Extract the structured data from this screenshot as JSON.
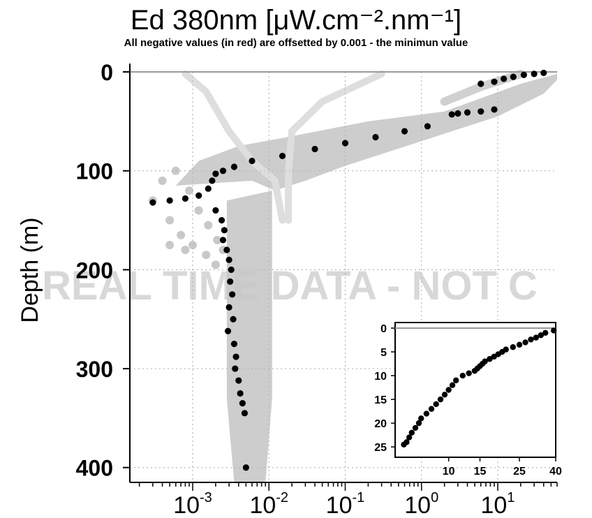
{
  "chart_data": {
    "type": "scatter",
    "title": "Ed 380nm [μW.cm⁻².nm⁻¹]",
    "subtitle": "All negative values (in red) are offsetted by 0.001 - the minimun value",
    "ylabel": "Depth (m)",
    "xlabel": "",
    "x_scale": "log",
    "y_inverted": true,
    "xlim": [
      0.00015,
      60
    ],
    "ylim": [
      0,
      415
    ],
    "x_ticks": [
      {
        "value": 0.001,
        "base": "10",
        "exp": "-3"
      },
      {
        "value": 0.01,
        "base": "10",
        "exp": "-2"
      },
      {
        "value": 0.1,
        "base": "10",
        "exp": "-1"
      },
      {
        "value": 1,
        "base": "10",
        "exp": "0"
      },
      {
        "value": 10,
        "base": "10",
        "exp": "1"
      }
    ],
    "y_ticks": [
      "0",
      "100",
      "200",
      "300",
      "400"
    ],
    "grid": true,
    "watermark": "REAL TIME DATA - NOT C",
    "colors": {
      "historical": "#c8c8c8",
      "current": "#000000",
      "surface_line": "#999999",
      "grid": "#b5b5b5"
    },
    "current_profile": [
      [
        40,
        1
      ],
      [
        30,
        2
      ],
      [
        22,
        3
      ],
      [
        16,
        5
      ],
      [
        12,
        7
      ],
      [
        9,
        10
      ],
      [
        6,
        12
      ],
      [
        9,
        38
      ],
      [
        6,
        40
      ],
      [
        4,
        41
      ],
      [
        3,
        42
      ],
      [
        2.5,
        43
      ],
      [
        1.2,
        55
      ],
      [
        0.6,
        60
      ],
      [
        0.25,
        66
      ],
      [
        0.1,
        72
      ],
      [
        0.04,
        78
      ],
      [
        0.015,
        85
      ],
      [
        0.006,
        90
      ],
      [
        0.0035,
        96
      ],
      [
        0.0025,
        100
      ],
      [
        0.002,
        103
      ],
      [
        0.0018,
        110
      ],
      [
        0.0016,
        118
      ],
      [
        0.0012,
        125
      ],
      [
        0.0008,
        128
      ],
      [
        0.0005,
        130
      ],
      [
        0.0003,
        132
      ],
      [
        0.002,
        140
      ],
      [
        0.0024,
        150
      ],
      [
        0.0026,
        160
      ],
      [
        0.0025,
        170
      ],
      [
        0.0028,
        180
      ],
      [
        0.003,
        190
      ],
      [
        0.0032,
        200
      ],
      [
        0.0031,
        212
      ],
      [
        0.0033,
        225
      ],
      [
        0.003,
        238
      ],
      [
        0.0034,
        250
      ],
      [
        0.0029,
        262
      ],
      [
        0.0035,
        275
      ],
      [
        0.0037,
        288
      ],
      [
        0.0036,
        300
      ],
      [
        0.004,
        312
      ],
      [
        0.0042,
        325
      ],
      [
        0.0045,
        335
      ],
      [
        0.0048,
        345
      ],
      [
        0.005,
        400
      ]
    ],
    "historical_band": {
      "surface": [
        [
          0.02,
          5
        ],
        [
          0.3,
          20
        ],
        [
          4,
          50
        ],
        [
          15,
          20
        ],
        [
          50,
          2
        ]
      ],
      "left_edge": [
        [
          0.0012,
          90
        ],
        [
          0.0006,
          110
        ],
        [
          0.0004,
          140
        ],
        [
          0.001,
          180
        ],
        [
          0.0028,
          200
        ],
        [
          0.0028,
          330
        ],
        [
          0.0035,
          410
        ]
      ],
      "right_edge": [
        [
          0.06,
          90
        ],
        [
          0.012,
          120
        ],
        [
          0.011,
          200
        ],
        [
          0.011,
          330
        ],
        [
          0.009,
          410
        ]
      ],
      "faint_curve": [
        [
          0.3,
          2
        ],
        [
          0.05,
          30
        ],
        [
          0.02,
          60
        ],
        [
          0.018,
          100
        ],
        [
          0.018,
          150
        ]
      ]
    },
    "inset": {
      "xlim": [
        5,
        40
      ],
      "ylim": [
        0,
        26
      ],
      "x_ticks": [
        "10",
        "15",
        "25",
        "40"
      ],
      "y_ticks": [
        "0",
        "5",
        "10",
        "15",
        "20",
        "25"
      ],
      "points": [
        [
          39,
          0.5
        ],
        [
          35,
          1
        ],
        [
          33,
          1.5
        ],
        [
          31,
          2
        ],
        [
          29,
          2.4
        ],
        [
          27,
          3
        ],
        [
          25,
          3.5
        ],
        [
          23,
          4
        ],
        [
          21,
          4.5
        ],
        [
          20,
          5
        ],
        [
          19,
          5.5
        ],
        [
          18,
          6
        ],
        [
          17,
          6.5
        ],
        [
          16,
          7
        ],
        [
          15.5,
          7.5
        ],
        [
          15,
          8
        ],
        [
          14.5,
          8.5
        ],
        [
          14,
          9
        ],
        [
          13,
          9.5
        ],
        [
          12,
          10
        ],
        [
          11,
          11
        ],
        [
          10.5,
          12
        ],
        [
          10,
          13
        ],
        [
          9.5,
          14
        ],
        [
          9,
          15
        ],
        [
          8.5,
          16
        ],
        [
          8,
          17
        ],
        [
          7.5,
          18
        ],
        [
          7,
          19
        ],
        [
          6.8,
          20
        ],
        [
          6.5,
          21
        ],
        [
          6.2,
          22
        ],
        [
          6,
          23
        ],
        [
          5.8,
          24
        ],
        [
          5.6,
          24.5
        ]
      ]
    }
  }
}
